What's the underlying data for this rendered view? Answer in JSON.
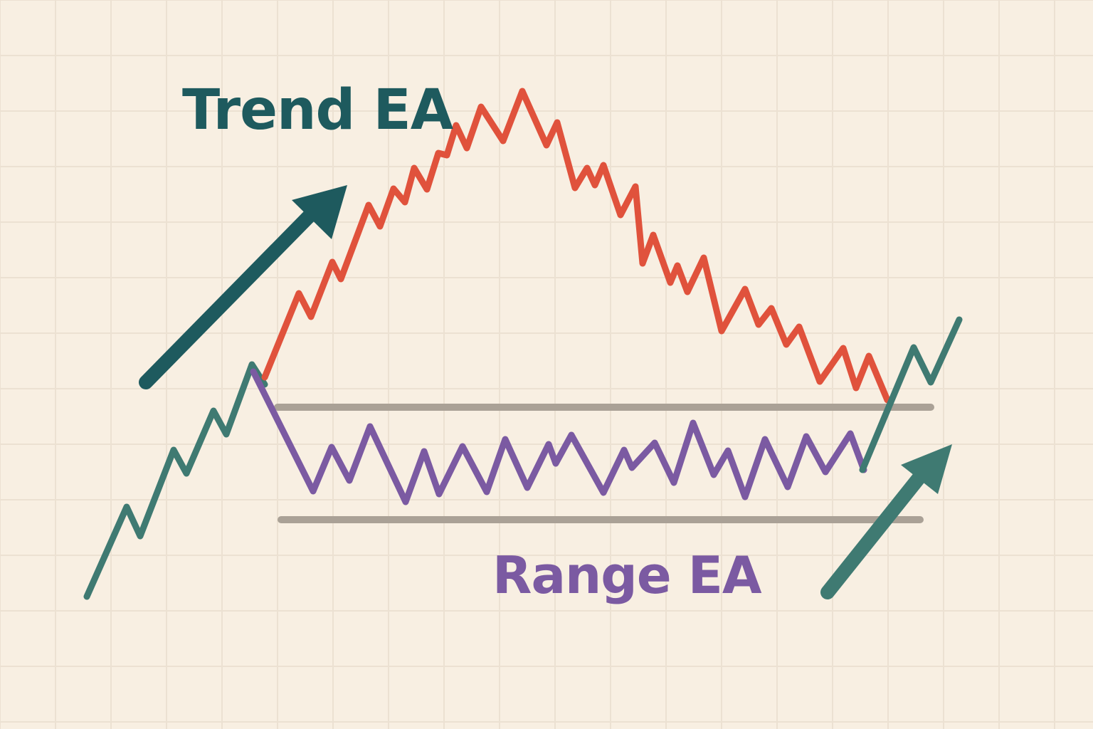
{
  "labels": {
    "trend": "Trend EA",
    "range": "Range EA"
  },
  "colors": {
    "background": "#f8efe2",
    "grid": "#ece1d2",
    "trend_line": "#3f7a72",
    "trend_text": "#1e5a5e",
    "trend_arrow": "#1e5a5e",
    "rally_line": "#e0523c",
    "range_line": "#7b5aa2",
    "range_text": "#7b5aa2",
    "band_line": "#aaa196",
    "breakout_arrow": "#3f7a72"
  },
  "icons": {
    "upper_arrow": "arrow-up-right-icon",
    "lower_arrow": "arrow-up-right-icon"
  }
}
